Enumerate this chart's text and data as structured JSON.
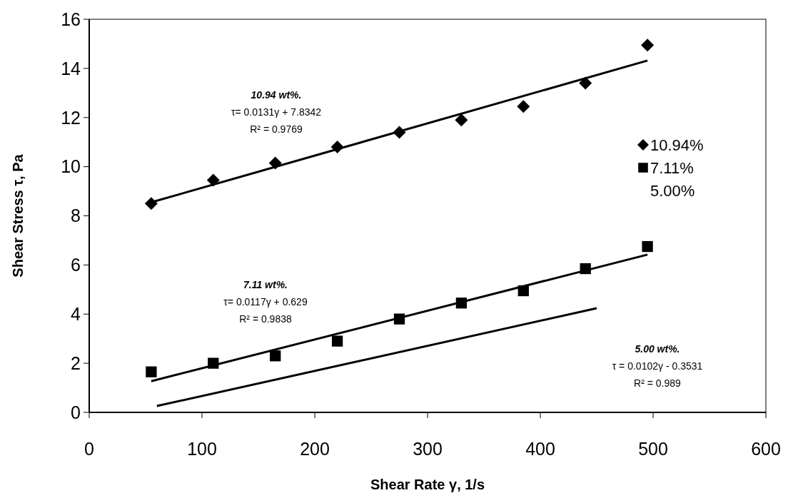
{
  "chart_data": {
    "type": "scatter",
    "xlabel": "Shear Rate γ, 1/s",
    "ylabel": "Shear Stress τ, Pa",
    "xlim": [
      0,
      600
    ],
    "xticks": [
      0,
      100,
      200,
      300,
      400,
      500,
      600
    ],
    "ylim": [
      0,
      16
    ],
    "yticks": [
      0,
      2,
      4,
      6,
      8,
      10,
      12,
      14,
      16
    ],
    "grid": false,
    "legend": "right",
    "series": [
      {
        "name": "10.94%",
        "marker": "diamond",
        "color": "#000000",
        "x": [
          55,
          110,
          165,
          220,
          275,
          330,
          385,
          440,
          495
        ],
        "values": [
          8.5,
          9.45,
          10.15,
          10.8,
          11.4,
          11.9,
          12.45,
          13.4,
          14.95
        ]
      },
      {
        "name": "7.11%",
        "marker": "square",
        "color": "#000000",
        "x": [
          55,
          110,
          165,
          220,
          275,
          330,
          385,
          440,
          495
        ],
        "values": [
          1.65,
          2.0,
          2.3,
          2.9,
          3.8,
          4.45,
          4.95,
          5.85,
          6.75
        ]
      },
      {
        "name": "5.00%",
        "type": "line",
        "marker": "none",
        "color": "#000000",
        "x": [
          60,
          450
        ],
        "values": [
          0.26,
          4.24
        ]
      },
      {
        "type": "line",
        "marker": "none",
        "color": "#000000",
        "x": [
          55,
          495
        ],
        "values": [
          8.55,
          14.32
        ]
      },
      {
        "type": "line",
        "marker": "none",
        "color": "#000000",
        "x": [
          55,
          495
        ],
        "values": [
          1.27,
          6.42
        ]
      }
    ],
    "annotations": [
      "10.94 wt%.\nτ= 0.0131γ + 7.8342\nR² = 0.9769",
      "7.11 wt%.\nτ= 0.0117γ + 0.629\nR² = 0.9838",
      "5.00 wt%.\nτ = 0.0102γ - 0.3531\nR² = 0.989"
    ]
  }
}
